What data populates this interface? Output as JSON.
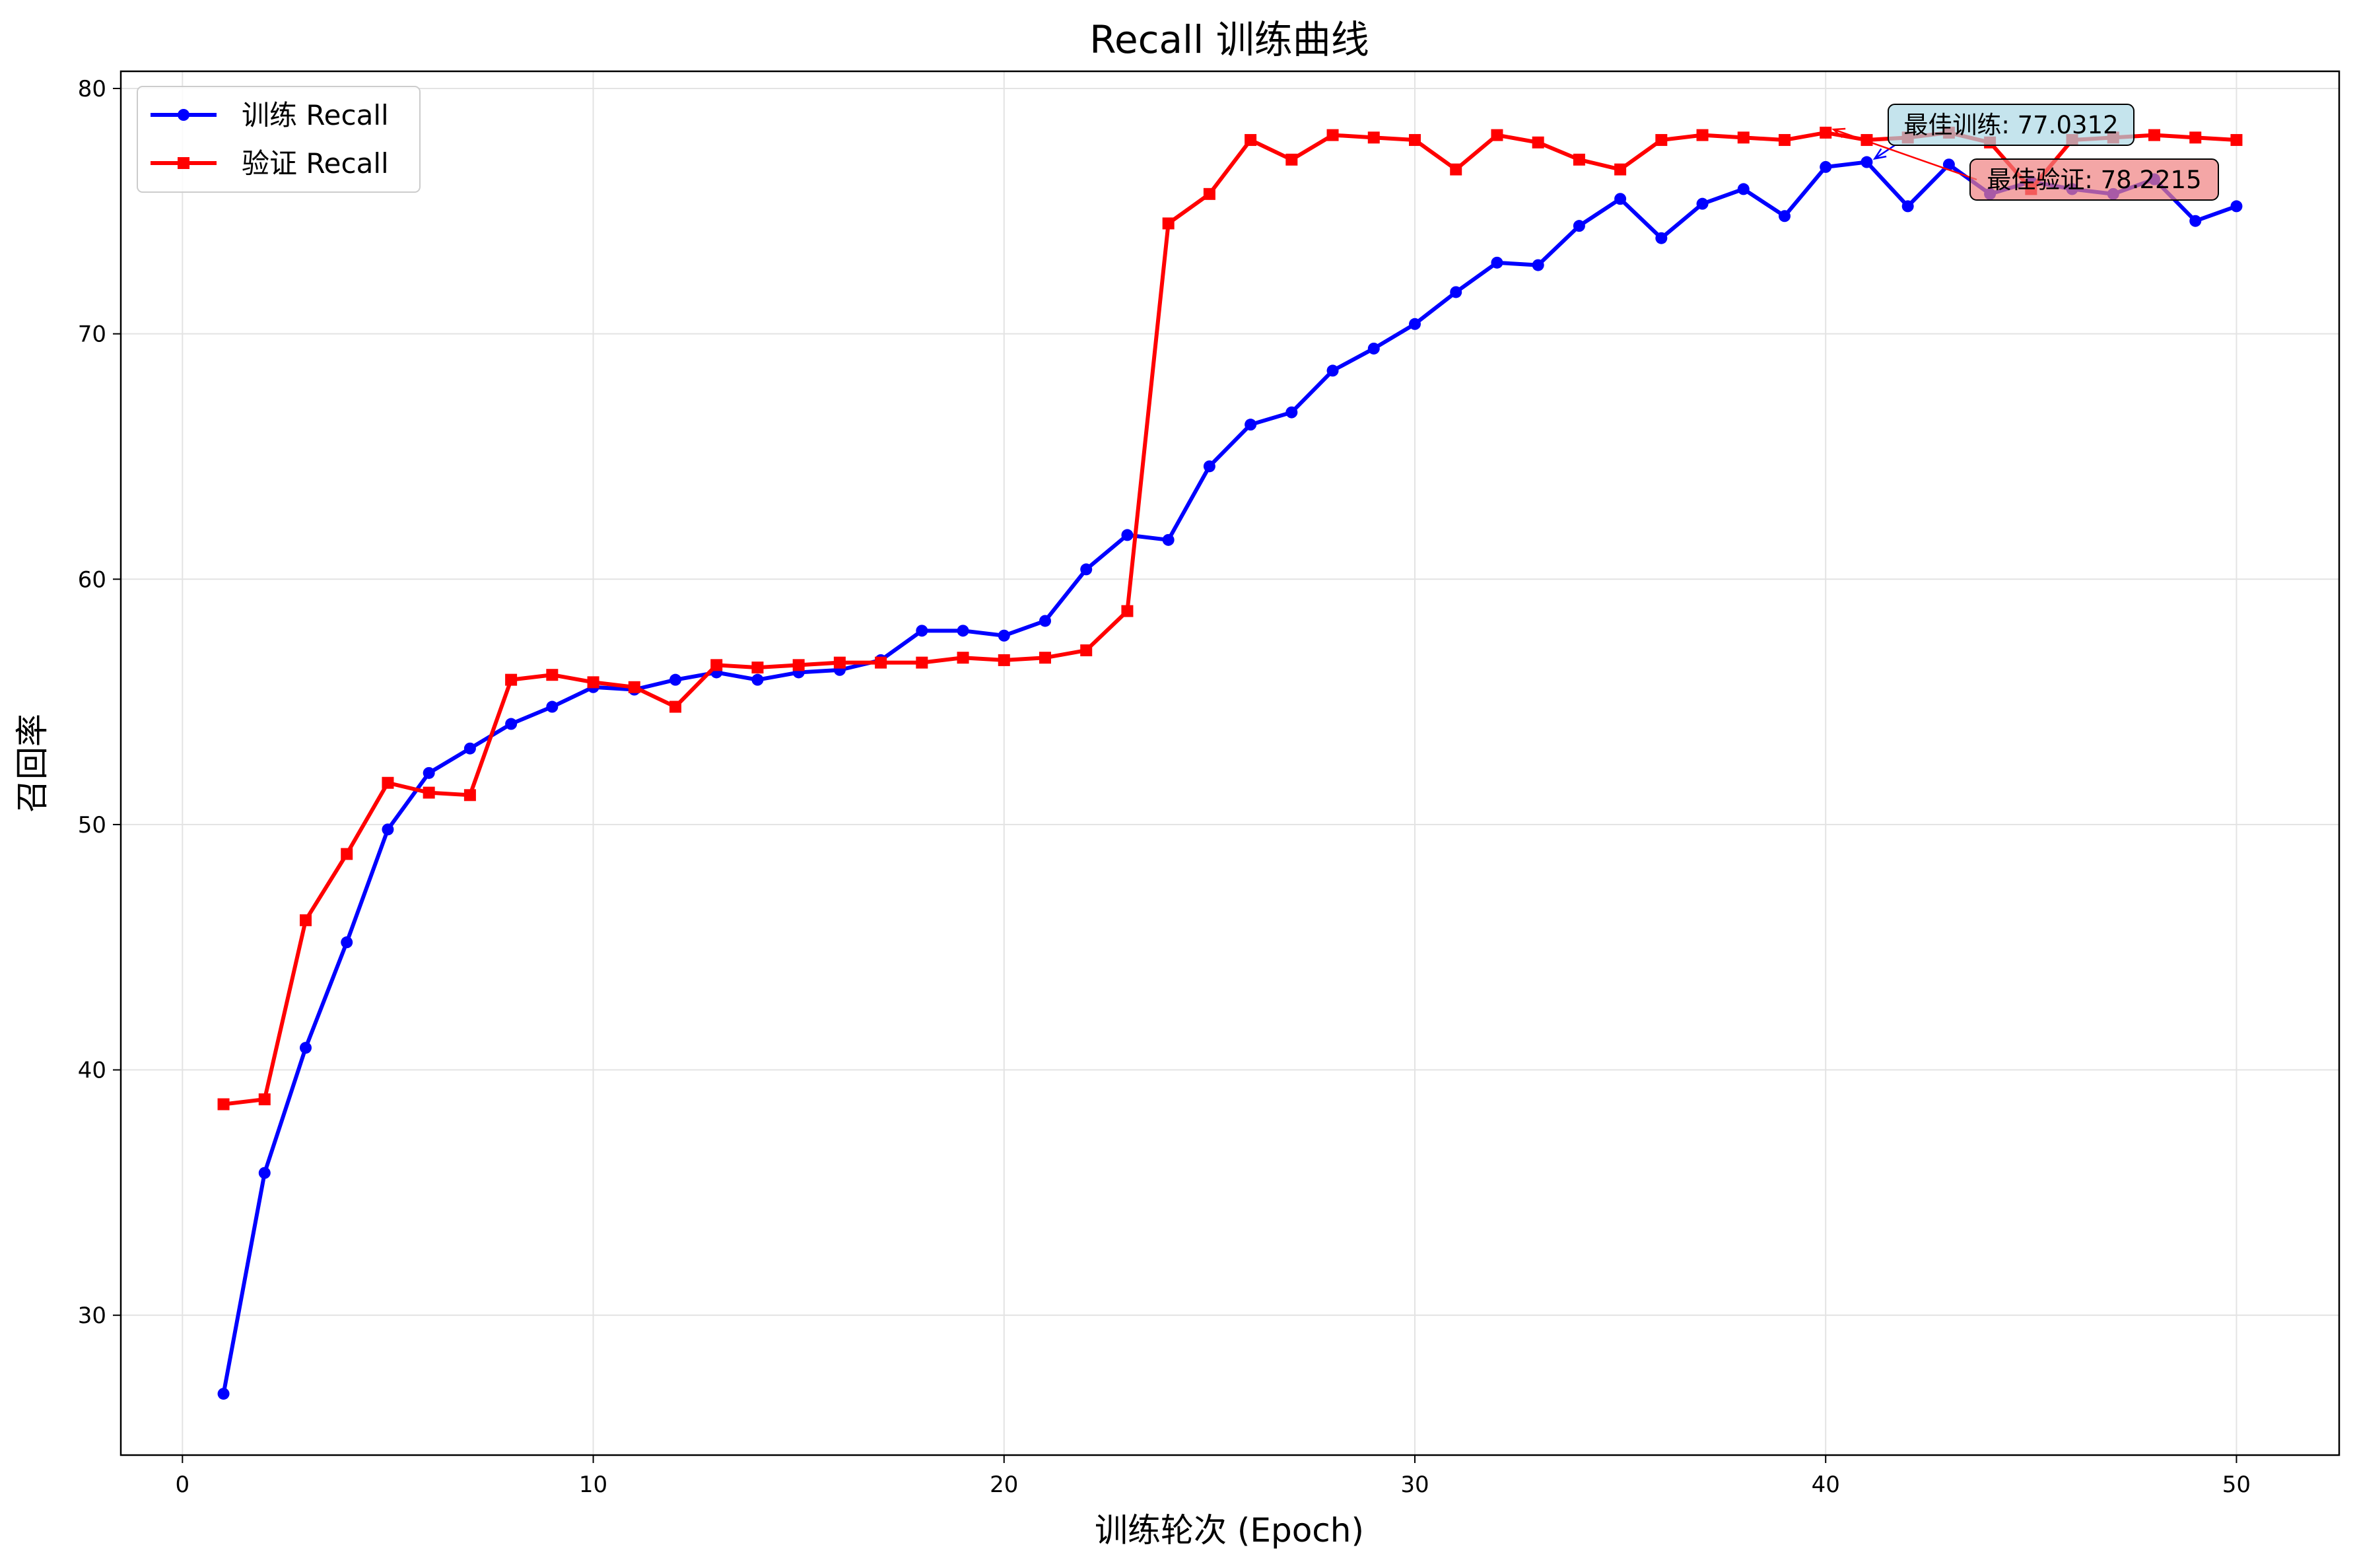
{
  "chart_data": {
    "type": "line",
    "title": "Recall 训练曲线",
    "xlabel": "训练轮次 (Epoch)",
    "ylabel": "召回率",
    "xlim": [
      -1.5,
      52.5
    ],
    "ylim": [
      24.3,
      80.7
    ],
    "xticks": [
      0,
      10,
      20,
      30,
      40,
      50
    ],
    "yticks": [
      30,
      40,
      50,
      60,
      70,
      80
    ],
    "grid": true,
    "legend_position": "top-left",
    "x": [
      1,
      2,
      3,
      4,
      5,
      6,
      7,
      8,
      9,
      10,
      11,
      12,
      13,
      14,
      15,
      16,
      17,
      18,
      19,
      20,
      21,
      22,
      23,
      24,
      25,
      26,
      27,
      28,
      29,
      30,
      31,
      32,
      33,
      34,
      35,
      36,
      37,
      38,
      39,
      40,
      41,
      42,
      43,
      44,
      45,
      46,
      47,
      48,
      49,
      50
    ],
    "series": [
      {
        "name": "训练 Recall",
        "color": "#0000ff",
        "marker": "circle",
        "values": [
          26.8,
          35.8,
          40.9,
          45.2,
          49.8,
          52.1,
          53.1,
          54.1,
          54.8,
          55.6,
          55.5,
          55.9,
          56.2,
          55.9,
          56.2,
          56.3,
          56.7,
          57.9,
          57.9,
          57.7,
          58.3,
          60.4,
          61.8,
          61.6,
          64.6,
          66.3,
          66.8,
          68.5,
          69.4,
          70.4,
          71.7,
          72.9,
          72.8,
          74.4,
          75.5,
          73.9,
          75.3,
          75.9,
          74.8,
          76.8,
          77.0,
          75.2,
          76.9,
          75.7,
          76.2,
          75.9,
          75.7,
          76.3,
          74.6,
          75.2
        ]
      },
      {
        "name": "验证 Recall",
        "color": "#ff0000",
        "marker": "square",
        "values": [
          38.6,
          38.8,
          46.1,
          48.8,
          51.7,
          51.3,
          51.2,
          55.9,
          56.1,
          55.8,
          55.6,
          54.8,
          56.5,
          56.4,
          56.5,
          56.6,
          56.6,
          56.6,
          56.8,
          56.7,
          56.8,
          57.1,
          58.7,
          74.5,
          75.7,
          77.9,
          77.1,
          78.1,
          78.0,
          77.9,
          76.7,
          78.1,
          77.8,
          77.1,
          76.7,
          77.9,
          78.1,
          78.0,
          77.9,
          78.2,
          77.9,
          78.0,
          78.2,
          77.8,
          75.9,
          77.9,
          78.0,
          78.1,
          78.0,
          77.9
        ]
      }
    ],
    "annotations": [
      {
        "text": "最佳训练: 77.0312",
        "x": 41,
        "y": 77.0312,
        "series": "训练 Recall",
        "box_color": "#add8e6"
      },
      {
        "text": "最佳验证: 78.2215",
        "x": 40,
        "y": 78.2215,
        "series": "验证 Recall",
        "box_color": "#f08080"
      }
    ]
  }
}
